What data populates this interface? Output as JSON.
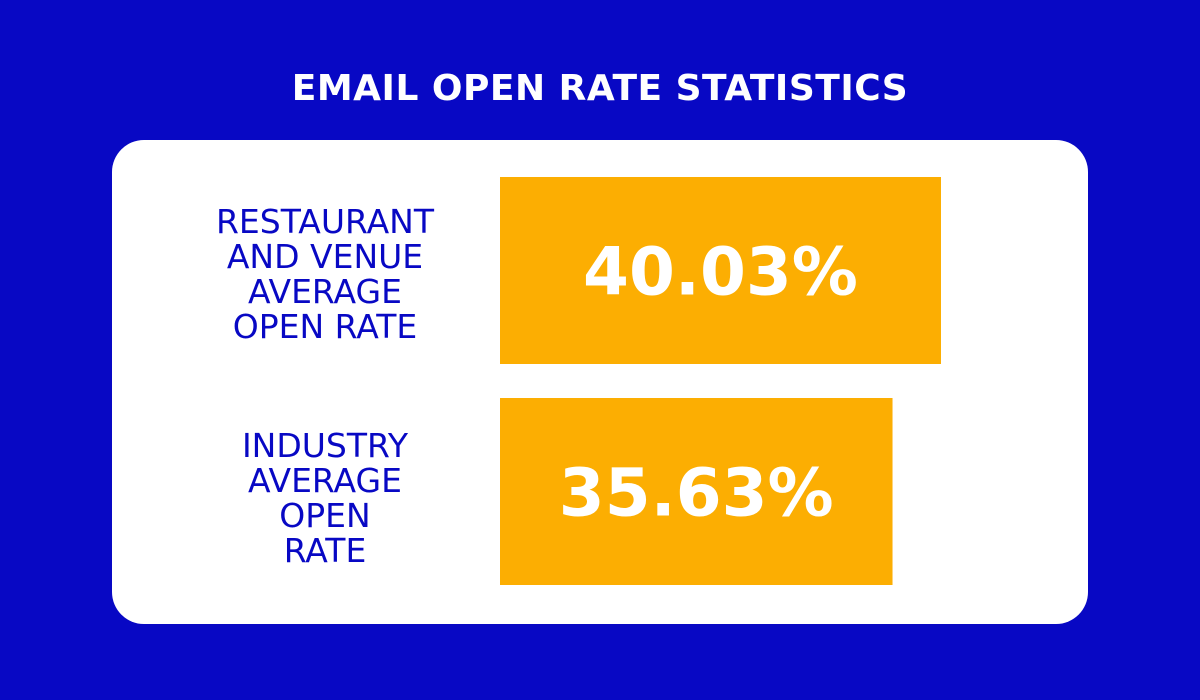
{
  "title": "EMAIL OPEN RATE STATISTICS",
  "colors": {
    "background": "#0808c4",
    "card": "#ffffff",
    "bar": "#fcae02",
    "label": "#0808c4",
    "value_text": "#ffffff"
  },
  "chart_data": {
    "type": "bar",
    "orientation": "horizontal",
    "title": "EMAIL OPEN RATE STATISTICS",
    "categories": [
      "RESTAURANT\nAND VENUE\nAVERAGE\nOPEN RATE",
      "INDUSTRY\nAVERAGE\nOPEN\nRATE"
    ],
    "values": [
      40.03,
      35.63
    ],
    "value_labels": [
      "40.03%",
      "35.63%"
    ],
    "grid": false,
    "legend": "none"
  }
}
